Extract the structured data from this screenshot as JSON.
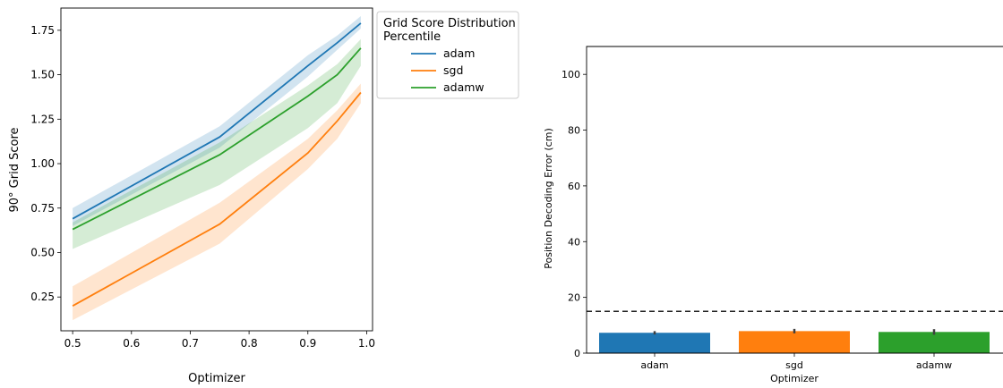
{
  "chart_data": [
    {
      "type": "line",
      "xlabel": "Optimizer",
      "ylabel": "90° Grid Score",
      "xlim": [
        0.48,
        1.01
      ],
      "ylim": [
        0.06,
        1.875
      ],
      "xticks": [
        "0.5",
        "0.6",
        "0.7",
        "0.8",
        "0.9",
        "1.0"
      ],
      "yticks": [
        "0.25",
        "0.50",
        "0.75",
        "1.00",
        "1.25",
        "1.50",
        "1.75"
      ],
      "legend": {
        "title": "Grid Score Distribution\nPercentile",
        "placement": "outside-right"
      },
      "x": [
        0.5,
        0.75,
        0.9,
        0.95,
        0.99
      ],
      "series": [
        {
          "name": "adam",
          "color": "#1f77b4",
          "values": [
            0.69,
            1.15,
            1.55,
            1.68,
            1.79
          ],
          "lower": [
            0.65,
            1.09,
            1.49,
            1.64,
            1.76
          ],
          "upper": [
            0.75,
            1.21,
            1.61,
            1.72,
            1.83
          ]
        },
        {
          "name": "sgd",
          "color": "#ff7f0e",
          "values": [
            0.2,
            0.66,
            1.06,
            1.24,
            1.4
          ],
          "lower": [
            0.12,
            0.55,
            0.97,
            1.14,
            1.34
          ],
          "upper": [
            0.31,
            0.78,
            1.14,
            1.3,
            1.45
          ]
        },
        {
          "name": "adamw",
          "color": "#2ca02c",
          "values": [
            0.63,
            1.05,
            1.38,
            1.5,
            1.65
          ],
          "lower": [
            0.52,
            0.88,
            1.2,
            1.34,
            1.55
          ],
          "upper": [
            0.67,
            1.12,
            1.44,
            1.56,
            1.7
          ]
        }
      ]
    },
    {
      "type": "bar",
      "xlabel": "Optimizer",
      "ylabel": "Position Decoding Error (cm)",
      "categories": [
        "adam",
        "sgd",
        "adamw"
      ],
      "values": [
        7.3,
        7.9,
        7.6
      ],
      "errors": [
        0.6,
        0.8,
        1.0
      ],
      "colors": [
        "#1f77b4",
        "#ff7f0e",
        "#2ca02c"
      ],
      "ylim": [
        0,
        110
      ],
      "yticks": [
        "0",
        "20",
        "40",
        "60",
        "80",
        "100"
      ],
      "reference_line": 15
    }
  ]
}
